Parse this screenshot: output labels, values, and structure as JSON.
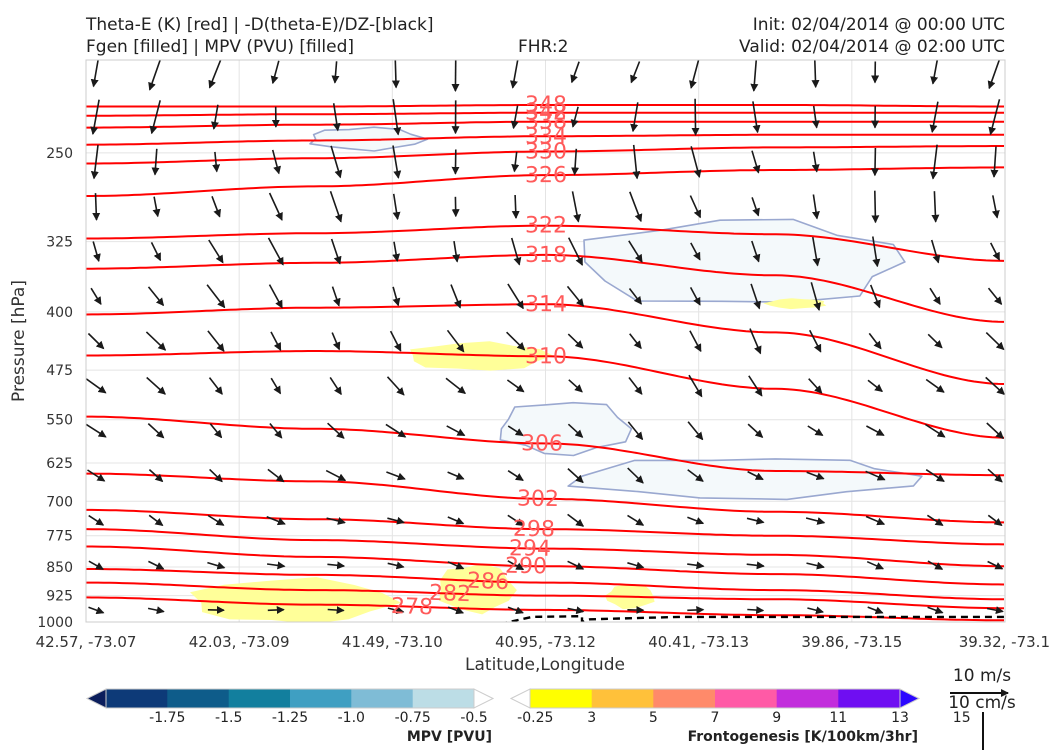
{
  "header": {
    "title_line1": "Theta-E (K) [red] | -D(theta-E)/DZ-[black]",
    "title_line2": "Fgen [filled] | MPV (PVU) [filled]",
    "fhr": "FHR:2",
    "init": "Init: 02/04/2014 @ 00:00 UTC",
    "valid": "Valid: 02/04/2014 @ 02:00 UTC"
  },
  "chart_data": {
    "type": "cross-section",
    "xlabel": "Latitude,Longitude",
    "ylabel": "Pressure [hPa]",
    "xticks": [
      "42.57, -73.07",
      "42.03, -73.09",
      "41.49, -73.10",
      "40.95, -73.12",
      "40.41, -73.13",
      "39.86, -73.15",
      "39.32, -73.1"
    ],
    "yticks": [
      250,
      325,
      400,
      475,
      550,
      625,
      700,
      775,
      850,
      925,
      1000
    ],
    "ylim": [
      1000,
      190
    ],
    "y_scale": "log",
    "grid": true,
    "contour_colors": {
      "theta_e": "#ff0000",
      "label": "#ff5a5a",
      "neg_stability": "#000000",
      "mpv_outline": "#9aa8d0",
      "mpv_fill": "#f4f9fb",
      "fgen_fill": "#ffff99",
      "vector": "#1a1a1a"
    },
    "theta_e_contours": [
      {
        "label": "348",
        "pressure": [
          218,
          218,
          217,
          217,
          218
        ]
      },
      {
        "label": "342",
        "pressure": [
          224,
          223,
          222,
          222,
          222
        ]
      },
      {
        "label": "338",
        "pressure": [
          232,
          230,
          228,
          228,
          228
        ]
      },
      {
        "label": "334",
        "pressure": [
          244,
          241,
          238,
          237,
          237
        ]
      },
      {
        "label": "330",
        "pressure": [
          258,
          254,
          249,
          246,
          245
        ]
      },
      {
        "label": "326",
        "pressure": [
          284,
          276,
          267,
          263,
          261
        ]
      },
      {
        "label": "322",
        "pressure": [
          322,
          317,
          310,
          318,
          344
        ]
      },
      {
        "label": "318",
        "pressure": [
          352,
          346,
          338,
          359,
          412
        ]
      },
      {
        "label": "314",
        "pressure": [
          403,
          395,
          391,
          425,
          495
        ]
      },
      {
        "label": "310",
        "pressure": [
          455,
          449,
          456,
          502,
          580
        ]
      },
      {
        "label": "306",
        "pressure": [
          545,
          565,
          590,
          640,
          648
        ]
      },
      {
        "label": "302",
        "pressure": [
          645,
          660,
          695,
          722,
          745
        ]
      },
      {
        "label": "298",
        "pressure": [
          718,
          738,
          760,
          775,
          795
        ]
      },
      {
        "label": "294",
        "pressure": [
          760,
          785,
          805,
          820,
          848
        ]
      },
      {
        "label": "290",
        "pressure": [
          800,
          825,
          848,
          868,
          895
        ]
      },
      {
        "label": "286",
        "pressure": [
          855,
          870,
          890,
          910,
          935
        ]
      },
      {
        "label": "282",
        "pressure": [
          890,
          910,
          925,
          935,
          960
        ]
      },
      {
        "label": "278",
        "pressure": [
          930,
          950,
          965,
          980,
          995
        ]
      }
    ],
    "mpv_negative_regions": [
      {
        "center": [
          40.9,
          565
        ],
        "level": "-0.25"
      },
      {
        "center": [
          40.2,
          345
        ],
        "level": "-0.25"
      },
      {
        "center": [
          40.25,
          650
        ],
        "level": "-0.25"
      },
      {
        "center": [
          41.6,
          240
        ],
        "level": "-0.25"
      }
    ],
    "fgen_positive_regions": [
      {
        "center": [
          41.85,
          945
        ],
        "level": "3"
      },
      {
        "center": [
          41.2,
          910
        ],
        "level": "3"
      },
      {
        "center": [
          41.2,
          455
        ],
        "level": "3"
      },
      {
        "center": [
          40.65,
          925
        ],
        "level": "3"
      },
      {
        "center": [
          40.05,
          390
        ],
        "level": "3"
      }
    ],
    "wind_vectors": "10 m/s reference; northerly/north-northeast flow aloft, westerly to easterly near surface"
  },
  "colorbars": {
    "mpv": {
      "label": "MPV [PVU]",
      "ticks": [
        "-1.75",
        "-1.5",
        "-1.25",
        "-1.0",
        "-0.75",
        "-0.5",
        "-0.25"
      ],
      "colors": [
        "#0b1e5c",
        "#0d3a78",
        "#0e5c8a",
        "#127f9e",
        "#3f9fc2",
        "#7fbcd6",
        "#bcdde6",
        "#ffffff"
      ]
    },
    "fgen": {
      "label": "Frontogenesis [K/100km/3hr]",
      "ticks": [
        "3",
        "5",
        "7",
        "9",
        "11",
        "13",
        "15"
      ],
      "colors": [
        "#ffffff",
        "#ffff00",
        "#ffc13a",
        "#ff8a6a",
        "#ff5aa6",
        "#c22ddc",
        "#6f0ef2",
        "#2b07ff"
      ]
    }
  },
  "reference_vector": {
    "label1": "10 m/s",
    "label2": "10 cm/s"
  }
}
